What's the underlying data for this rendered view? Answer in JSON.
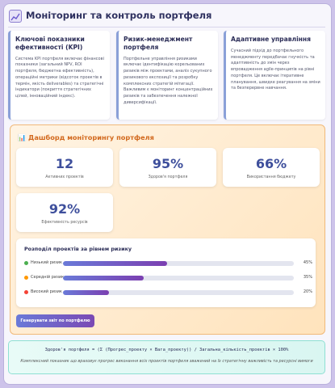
{
  "header": {
    "title": "Моніторинг та контроль портфеля"
  },
  "cards": [
    {
      "title": "Ключові показники ефективності (KPI)",
      "text": "Система KPI портфеля включає фінансові показники (загальний NPV, ROI портфеля, бюджетна ефективність), операційні метрики (відсоток проектів в термін, якість deliverables) та стратегічні індикатори (покриття стратегічних цілей, інноваційний індекс)."
    },
    {
      "title": "Ризик-менеджмент портфеля",
      "text": "Портфельне управління ризиками включає ідентифікацію корельованих ризиків між проектами, аналіз сукупного ризикового експозиції та розробку комплексних стратегій мітигації. Важливим є моніторинг концентраційних ризиків та забезпечення належної диверсифікації."
    },
    {
      "title": "Адаптивне управління",
      "text": "Сучасний підхід до портфельного менеджменту передбачає гнучкість та адаптивність до змін через впровадження agile-принципів на рівні портфеля. Це включає ітеративне планування, швидке реагування на зміни та безперервне навчання."
    }
  ],
  "dashboard": {
    "title": "📊 Дашборд моніторингу портфеля",
    "metrics": [
      {
        "value": "12",
        "label": "Активних проектів"
      },
      {
        "value": "95%",
        "label": "Здоров'я портфеля"
      },
      {
        "value": "66%",
        "label": "Використання бюджету"
      },
      {
        "value": "92%",
        "label": "Ефективність ресурсів"
      }
    ],
    "risk": {
      "title": "Розподіл проектів за рівнем ризику",
      "rows": [
        {
          "label": "Низький ризик",
          "value": 45,
          "value_label": "45%",
          "color": "#4caf50"
        },
        {
          "label": "Середній ризик",
          "value": 35,
          "value_label": "35%",
          "color": "#ff9800"
        },
        {
          "label": "Високий ризик",
          "value": 20,
          "value_label": "20%",
          "color": "#f44336"
        }
      ]
    },
    "button": "Генерувати звіт по портфелю"
  },
  "formula": {
    "text": "Здоров'я портфеля = (Σ (Прогрес_проекту × Вага_проекту)) / Загальна_кількість_проектів × 100%",
    "note": "Комплексний показник що враховує прогрес виконання всіх проектів портфеля зважений на їх стратегічну важливість та ресурсні вимоги"
  }
}
